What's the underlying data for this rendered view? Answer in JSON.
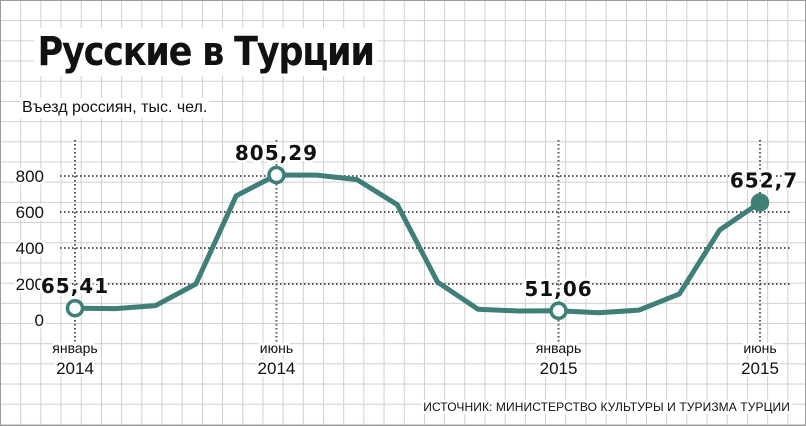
{
  "title": "Русские в Турции",
  "source": "ИСТОЧНИК: МИНИСТЕРСТВО КУЛЬТУРЫ И ТУРИЗМА ТУРЦИИ",
  "colors": {
    "line": "#3f7f78",
    "text": "#111111",
    "grid": "#cfcfcf"
  },
  "chart_data": {
    "type": "line",
    "title": "Русские в Турции",
    "ylabel": "Въезд россиян, тыс. чел.",
    "ylim": [
      0,
      800
    ],
    "yticks": [
      "800",
      "600",
      "400",
      "200",
      "0"
    ],
    "x": [
      "2014-01",
      "2014-02",
      "2014-03",
      "2014-04",
      "2014-05",
      "2014-06",
      "2014-07",
      "2014-08",
      "2014-09",
      "2014-10",
      "2014-11",
      "2014-12",
      "2015-01",
      "2015-02",
      "2015-03",
      "2015-04",
      "2015-05",
      "2015-06"
    ],
    "values": [
      65.41,
      63,
      80,
      200,
      690,
      805.29,
      805,
      780,
      640,
      210,
      60,
      50,
      51.06,
      40,
      55,
      145,
      500,
      652.7
    ],
    "x_labels": [
      {
        "index": 0,
        "top": "январь",
        "bottom": "2014"
      },
      {
        "index": 5,
        "top": "июнь",
        "bottom": "2014"
      },
      {
        "index": 12,
        "top": "январь",
        "bottom": "2015"
      },
      {
        "index": 17,
        "top": "июнь",
        "bottom": "2015"
      }
    ],
    "data_labels": [
      {
        "index": 0,
        "text": "65,41"
      },
      {
        "index": 5,
        "text": "805,29"
      },
      {
        "index": 12,
        "text": "51,06"
      },
      {
        "index": 17,
        "text": "652,7"
      }
    ],
    "grid": true,
    "legend": "none"
  }
}
